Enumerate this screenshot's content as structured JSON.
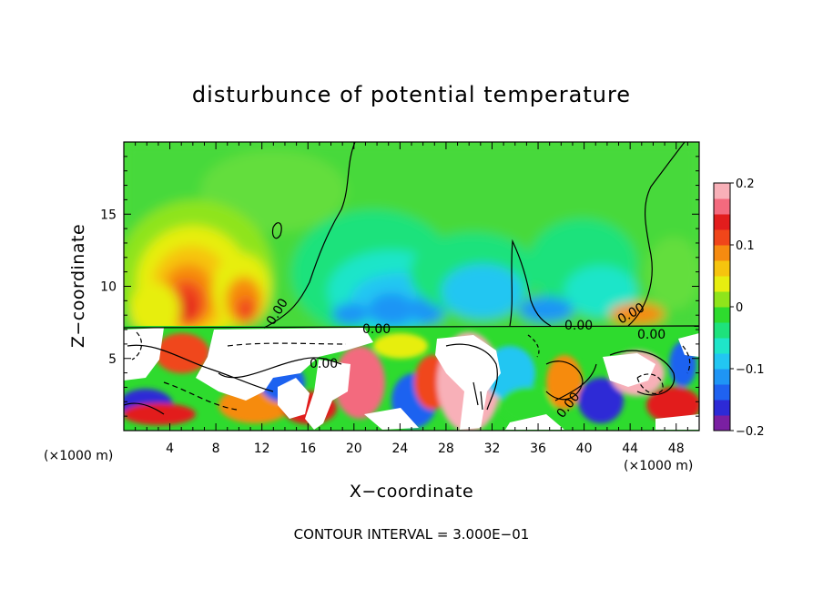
{
  "chart_data": {
    "type": "heatmap",
    "title": "disturbunce of potential temperature",
    "xlabel": "X−coordinate",
    "ylabel": "Z−coordinate",
    "x_unit": "(×1000 m)",
    "x_unit_right": "(×1000 m)",
    "xlim": [
      0,
      50
    ],
    "ylim": [
      0,
      20
    ],
    "xticks": [
      4,
      8,
      12,
      16,
      20,
      24,
      28,
      32,
      36,
      40,
      44,
      48
    ],
    "yticks": [
      5,
      10,
      15
    ],
    "x_tick_labels": [
      "4",
      "8",
      "12",
      "16",
      "20",
      "24",
      "28",
      "32",
      "36",
      "40",
      "44",
      "48"
    ],
    "y_tick_labels": [
      "5",
      "10",
      "15"
    ],
    "colorbar": {
      "min": -0.2,
      "max": 0.2,
      "ticks": [
        0.2,
        0.1,
        0,
        -0.1,
        -0.2
      ],
      "tick_labels": [
        "0.2",
        "0.1",
        "0",
        "−0.1",
        "−0.2"
      ],
      "colors": [
        "#7a1fa2",
        "#2d2ad6",
        "#1f62f0",
        "#1f95f5",
        "#22c6f2",
        "#1fe5c9",
        "#1ee27c",
        "#2edb2e",
        "#8fe41b",
        "#e7ee10",
        "#f6c40e",
        "#f68b10",
        "#f0461a",
        "#e21d1d",
        "#f36a7e",
        "#f8b0b8"
      ]
    },
    "contour_labels": [
      "0.00",
      "0.00",
      "0.00",
      "0.00",
      "0.00",
      "0.00",
      "0.00"
    ],
    "note": "CONTOUR INTERVAL = 3.000E−01",
    "colors": {
      "background_field": "#55e255",
      "upper_field": "#4bdd4b",
      "frame": "#000000"
    }
  }
}
